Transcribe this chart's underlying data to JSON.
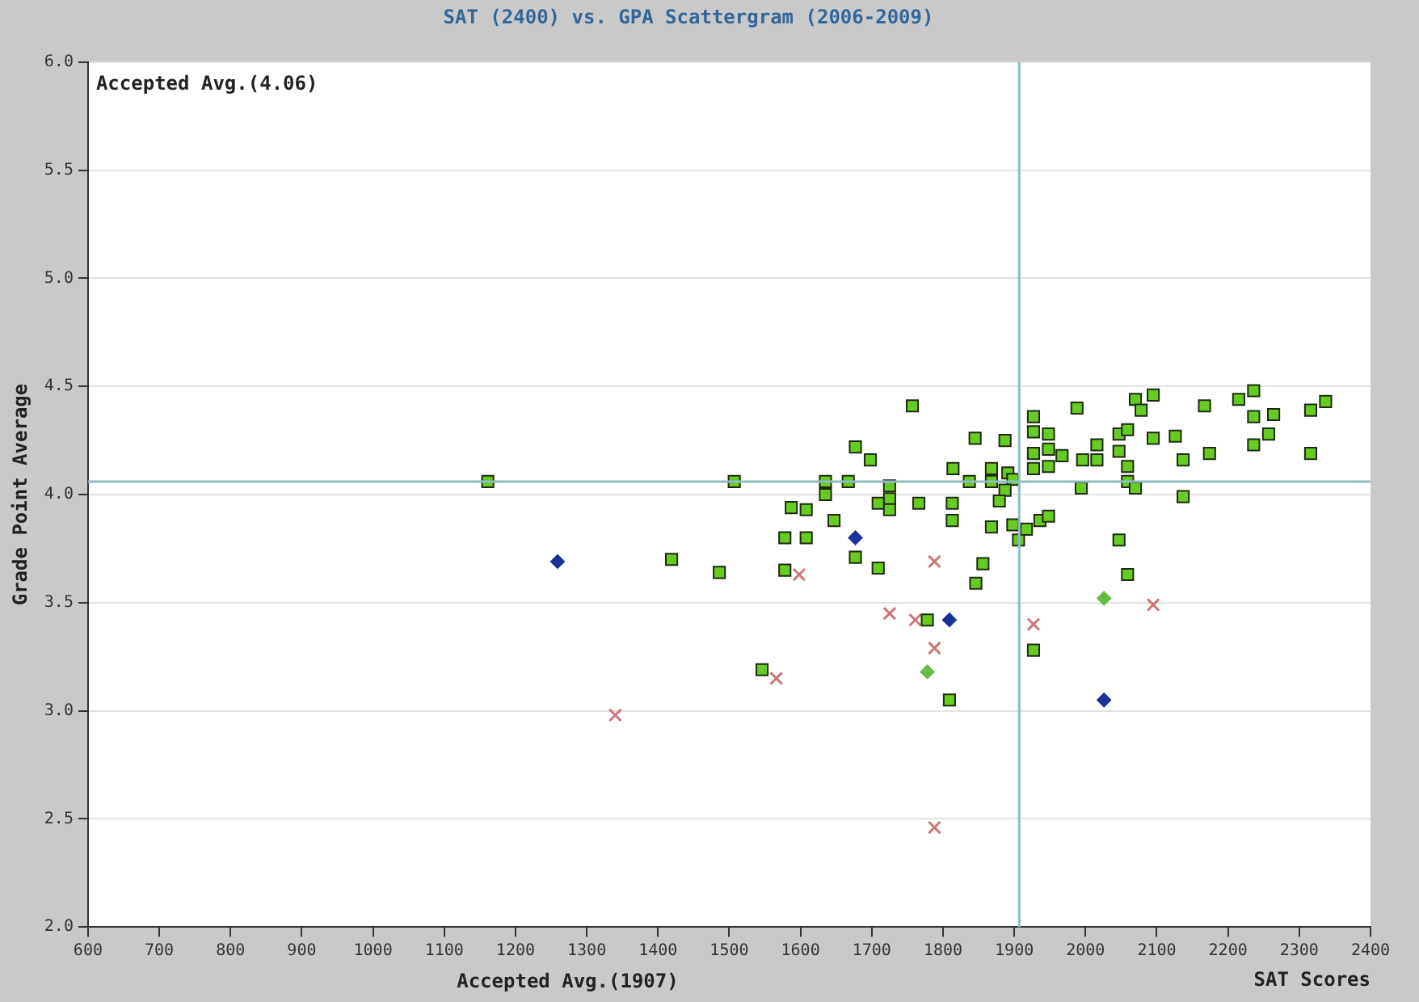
{
  "chart_data": {
    "type": "scatter",
    "title": "SAT (2400) vs. GPA Scattergram (2006-2009)",
    "xlabel": "SAT Scores",
    "ylabel": "Grade Point Average",
    "xlim": [
      600,
      2400
    ],
    "xticks": [
      600,
      700,
      800,
      900,
      1000,
      1100,
      1200,
      1300,
      1400,
      1500,
      1600,
      1700,
      1800,
      1900,
      2000,
      2100,
      2200,
      2300,
      2400
    ],
    "ylim": [
      2,
      6
    ],
    "yticks": [
      {
        "value": 2,
        "label": "2.0"
      },
      2.5,
      {
        "value": 3,
        "label": "3.0"
      },
      3.5,
      {
        "value": 4,
        "label": "4.0"
      },
      4.5,
      {
        "value": 5,
        "label": "5.0"
      },
      5.5,
      {
        "value": 6,
        "label": "6.0"
      }
    ],
    "grid": "y",
    "legend": false,
    "ref_lines": [
      {
        "axis": "x",
        "value": 1907,
        "color": "#8fbcc4"
      },
      {
        "axis": "y",
        "value": 4.06,
        "color": "#8fbcc4"
      }
    ],
    "annotations": [
      "Accepted Avg.(1907)",
      "Accepted Avg.(4.06)"
    ],
    "series": [
      {
        "color": "#66cc22",
        "marker": "square",
        "x": [
          1161,
          1507,
          1635,
          1667,
          1635,
          1725,
          1725,
          1725,
          1709,
          1587,
          1608,
          1766,
          1647,
          1578,
          1608,
          1677,
          1709,
          1419,
          1486,
          1578,
          1546,
          1778,
          1757,
          1677,
          1698,
          1845,
          1887,
          1814,
          1837,
          1868,
          1868,
          1891,
          1898,
          1887,
          1879,
          1813,
          1813,
          1868,
          1898,
          1906,
          1917,
          1936,
          1948,
          1856,
          1846,
          1927,
          1927,
          1948,
          1927,
          1948,
          1927,
          1948,
          1967,
          1988,
          1996,
          1994,
          2016,
          2016,
          2047,
          2047,
          2059,
          2059,
          2059,
          2070,
          2070,
          2078,
          2095,
          2095,
          2126,
          2137,
          2137,
          2167,
          2174,
          2215,
          2236,
          2236,
          2264,
          2257,
          2236,
          2316,
          2337,
          2316,
          2047,
          2059,
          1927,
          1809
        ],
        "values": [
          4.06,
          4.06,
          4.06,
          4.06,
          4.0,
          4.04,
          3.98,
          3.93,
          3.96,
          3.94,
          3.93,
          3.96,
          3.88,
          3.8,
          3.8,
          3.71,
          3.66,
          3.7,
          3.64,
          3.65,
          3.19,
          3.42,
          4.41,
          4.22,
          4.16,
          4.26,
          4.25,
          4.12,
          4.06,
          4.12,
          4.06,
          4.1,
          4.07,
          4.02,
          3.97,
          3.96,
          3.88,
          3.85,
          3.86,
          3.79,
          3.84,
          3.88,
          3.9,
          3.68,
          3.59,
          4.36,
          4.29,
          4.28,
          4.19,
          4.21,
          4.12,
          4.13,
          4.18,
          4.4,
          4.16,
          4.03,
          4.23,
          4.16,
          4.28,
          4.2,
          4.3,
          4.13,
          4.06,
          4.03,
          4.44,
          4.39,
          4.46,
          4.26,
          4.27,
          4.16,
          3.99,
          4.41,
          4.19,
          4.44,
          4.48,
          4.36,
          4.37,
          4.28,
          4.23,
          4.39,
          4.43,
          4.19,
          3.79,
          3.63,
          3.28,
          3.05
        ]
      },
      {
        "color": "#1a3399",
        "marker": "diamond",
        "x": [
          1259,
          1677,
          1809,
          2026
        ],
        "values": [
          3.69,
          3.8,
          3.42,
          3.05
        ]
      },
      {
        "color": "#66bb44",
        "marker": "diamond",
        "x": [
          1778,
          2026
        ],
        "values": [
          3.18,
          3.52
        ]
      },
      {
        "color": "#cc7777",
        "marker": "cross",
        "x": [
          1598,
          1725,
          1761,
          1566,
          1340,
          1788,
          1788,
          1927,
          2095,
          1788
        ],
        "values": [
          3.63,
          3.45,
          3.42,
          3.15,
          2.98,
          3.69,
          3.29,
          3.4,
          3.49,
          2.46
        ]
      }
    ]
  }
}
